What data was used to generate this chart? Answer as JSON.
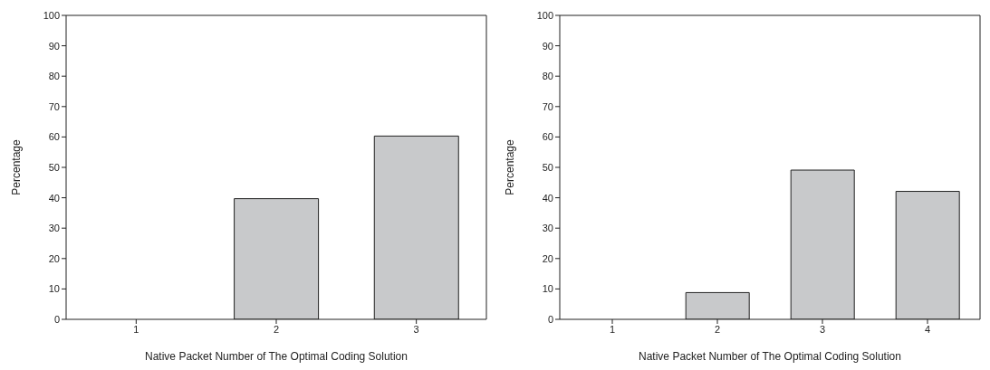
{
  "chart_data": [
    {
      "type": "bar",
      "xlabel": "Native Packet Number of The Optimal Coding Solution",
      "ylabel": "Percentage",
      "categories": [
        "1",
        "2",
        "3"
      ],
      "values": [
        0,
        39.7,
        60.3
      ],
      "color": "#c8c9cb",
      "ylim": [
        0,
        100
      ],
      "yticks": [
        0,
        10,
        20,
        30,
        40,
        50,
        60,
        70,
        80,
        90,
        100
      ],
      "grid": false,
      "legend": false
    },
    {
      "type": "bar",
      "xlabel": "Native Packet Number of The Optimal Coding Solution",
      "ylabel": "Percentage",
      "categories": [
        "1",
        "2",
        "3",
        "4"
      ],
      "values": [
        0,
        8.8,
        49.1,
        42.1
      ],
      "color": "#c8c9cb",
      "ylim": [
        0,
        100
      ],
      "yticks": [
        0,
        10,
        20,
        30,
        40,
        50,
        60,
        70,
        80,
        90,
        100
      ],
      "grid": false,
      "legend": false
    }
  ]
}
